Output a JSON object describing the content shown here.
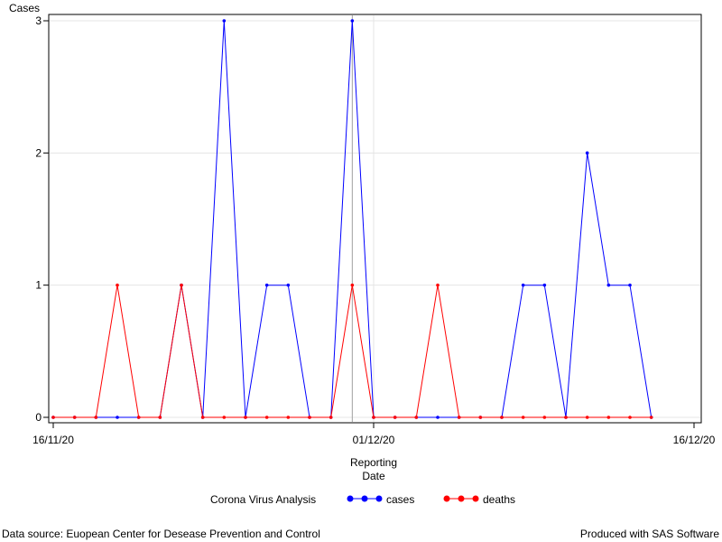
{
  "chart_data": {
    "type": "line",
    "ylabel": "Cases",
    "xlabel_lines": [
      "Reporting",
      "Date"
    ],
    "x_ticks": [
      "16/11/20",
      "01/12/20",
      "16/12/20"
    ],
    "y_ticks": [
      0,
      1,
      2,
      3
    ],
    "ylim": [
      0,
      3
    ],
    "xlim": [
      "2020-11-16",
      "2020-12-16"
    ],
    "grid": true,
    "legend_position": "bottom",
    "legend_title": "Corona Virus Analysis",
    "reference_date": "2020-11-30",
    "series": [
      {
        "name": "cases",
        "color": "#0000ff",
        "points": [
          [
            "2020-11-16",
            0
          ],
          [
            "2020-11-17",
            0
          ],
          [
            "2020-11-18",
            0
          ],
          [
            "2020-11-19",
            0
          ],
          [
            "2020-11-20",
            0
          ],
          [
            "2020-11-21",
            0
          ],
          [
            "2020-11-22",
            1
          ],
          [
            "2020-11-23",
            0
          ],
          [
            "2020-11-24",
            3
          ],
          [
            "2020-11-25",
            0
          ],
          [
            "2020-11-26",
            1
          ],
          [
            "2020-11-27",
            1
          ],
          [
            "2020-11-28",
            0
          ],
          [
            "2020-11-29",
            0
          ],
          [
            "2020-11-30",
            3
          ],
          [
            "2020-12-01",
            0
          ],
          [
            "2020-12-02",
            0
          ],
          [
            "2020-12-03",
            0
          ],
          [
            "2020-12-04",
            0
          ],
          [
            "2020-12-05",
            0
          ],
          [
            "2020-12-06",
            0
          ],
          [
            "2020-12-07",
            0
          ],
          [
            "2020-12-08",
            1
          ],
          [
            "2020-12-09",
            1
          ],
          [
            "2020-12-10",
            0
          ],
          [
            "2020-12-11",
            2
          ],
          [
            "2020-12-12",
            1
          ],
          [
            "2020-12-13",
            1
          ],
          [
            "2020-12-14",
            0
          ]
        ]
      },
      {
        "name": "deaths",
        "color": "#ff0000",
        "points": [
          [
            "2020-11-16",
            0
          ],
          [
            "2020-11-17",
            0
          ],
          [
            "2020-11-18",
            0
          ],
          [
            "2020-11-19",
            1
          ],
          [
            "2020-11-20",
            0
          ],
          [
            "2020-11-21",
            0
          ],
          [
            "2020-11-22",
            1
          ],
          [
            "2020-11-23",
            0
          ],
          [
            "2020-11-24",
            0
          ],
          [
            "2020-11-25",
            0
          ],
          [
            "2020-11-26",
            0
          ],
          [
            "2020-11-27",
            0
          ],
          [
            "2020-11-28",
            0
          ],
          [
            "2020-11-29",
            0
          ],
          [
            "2020-11-30",
            1
          ],
          [
            "2020-12-01",
            0
          ],
          [
            "2020-12-02",
            0
          ],
          [
            "2020-12-03",
            0
          ],
          [
            "2020-12-04",
            1
          ],
          [
            "2020-12-05",
            0
          ],
          [
            "2020-12-06",
            0
          ],
          [
            "2020-12-07",
            0
          ],
          [
            "2020-12-08",
            0
          ],
          [
            "2020-12-09",
            0
          ],
          [
            "2020-12-10",
            0
          ],
          [
            "2020-12-11",
            0
          ],
          [
            "2020-12-12",
            0
          ],
          [
            "2020-12-13",
            0
          ],
          [
            "2020-12-14",
            0
          ]
        ]
      }
    ]
  },
  "footnote_left": "Data source: Euopean Center for Desease Prevention and Control",
  "footnote_right": "Produced with SAS Software"
}
